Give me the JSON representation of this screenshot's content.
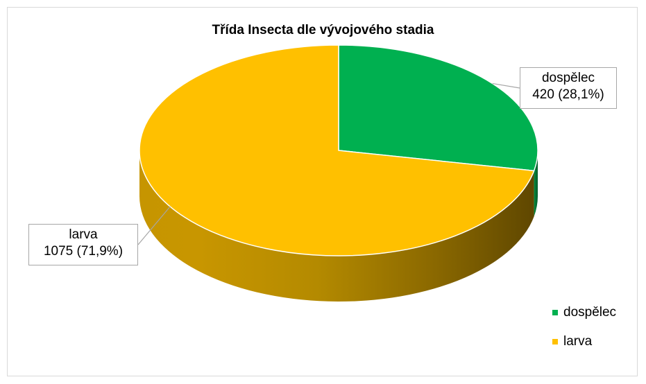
{
  "chart_data": {
    "type": "pie",
    "title": "Třída Insecta dle vývojového stadia",
    "categories": [
      "dospělec",
      "larva"
    ],
    "values": [
      420,
      1075
    ],
    "percent_labels": [
      "28,1%",
      "71,9%"
    ],
    "data_labels": [
      {
        "name": "dospělec",
        "text": "420 (28,1%)"
      },
      {
        "name": "larva",
        "text": "1075 (71,9%)"
      }
    ],
    "colors": [
      "#00b050",
      "#ffc000"
    ],
    "style": "3d",
    "legend_position": "right"
  },
  "legend": [
    {
      "label": "dospělec",
      "color": "#00b050"
    },
    {
      "label": "larva",
      "color": "#ffc000"
    }
  ]
}
